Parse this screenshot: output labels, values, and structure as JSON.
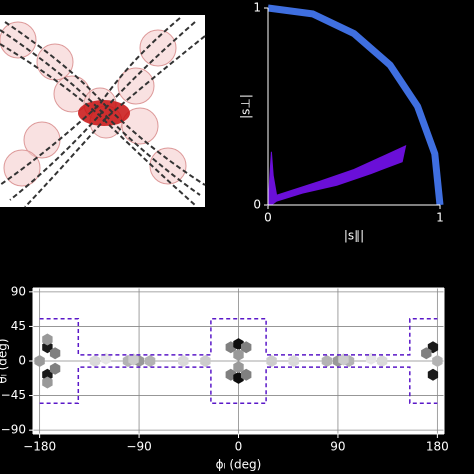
{
  "chart_data": [
    {
      "type": "line",
      "xlabel": "|s∥|",
      "ylabel": "|s⊥|",
      "xlim": [
        0,
        1
      ],
      "ylim": [
        0,
        1
      ],
      "xticks": [
        0,
        1
      ],
      "yticks": [
        0,
        1
      ],
      "series": [
        {
          "color": "#3f6fe0",
          "fill": false,
          "x": [
            0,
            0.26,
            0.5,
            0.71,
            0.87,
            0.97,
            1
          ],
          "y": [
            1,
            0.97,
            0.87,
            0.71,
            0.5,
            0.26,
            0
          ]
        },
        {
          "color": "#6a0fd8",
          "fill": true,
          "x": [
            0,
            0.02,
            0.03,
            0.05,
            0.3,
            0.5,
            0.75,
            0.8,
            0.78,
            0.6,
            0.4,
            0.2,
            0.05,
            0.02,
            0
          ],
          "y": [
            0,
            0.27,
            0.15,
            0.05,
            0.12,
            0.18,
            0.28,
            0.3,
            0.22,
            0.16,
            0.1,
            0.06,
            0.02,
            0,
            0
          ]
        }
      ]
    },
    {
      "type": "hexbin",
      "xlabel": "ϕₗ (deg)",
      "ylabel": "θₗ (deg)",
      "xlim": [
        -186,
        186
      ],
      "ylim": [
        -95,
        95
      ],
      "grid": true,
      "xticks": [
        {
          "value": -180,
          "label": "−180"
        },
        {
          "value": -90,
          "label": "−90"
        },
        0,
        90,
        180
      ],
      "yticks": [
        90,
        45,
        0,
        {
          "value": -45,
          "label": "−45"
        },
        {
          "value": -90,
          "label": "−90"
        }
      ],
      "x": [
        -173,
        -173,
        -166,
        -166,
        -180,
        -173,
        -173,
        -7,
        0,
        7,
        -7,
        0,
        7,
        0,
        0,
        176,
        176,
        170,
        180,
        -90,
        -100,
        -80,
        -95,
        90,
        80,
        100,
        95,
        -130,
        -50,
        50,
        130,
        -30,
        30,
        -120,
        120
      ],
      "y": [
        18,
        -18,
        10,
        -10,
        0,
        28,
        -28,
        18,
        22,
        18,
        -18,
        -22,
        -18,
        8,
        -8,
        18,
        -18,
        10,
        0,
        0,
        0,
        0,
        2,
        0,
        0,
        0,
        2,
        0,
        0,
        0,
        0,
        0,
        0,
        3,
        3
      ],
      "values": [
        0.9,
        0.9,
        0.5,
        0.5,
        0.4,
        0.4,
        0.4,
        0.5,
        0.95,
        0.5,
        0.5,
        0.95,
        0.5,
        0.4,
        0.4,
        0.9,
        0.9,
        0.5,
        0.3,
        0.4,
        0.3,
        0.3,
        0.2,
        0.4,
        0.3,
        0.3,
        0.2,
        0.15,
        0.15,
        0.15,
        0.15,
        0.2,
        0.2,
        0.1,
        0.1
      ],
      "series": [
        {
          "color": "#5a18c8",
          "dashed": true,
          "x": [
            -180,
            -145,
            -145,
            -25,
            -25,
            25,
            25,
            155,
            155,
            180
          ],
          "y": [
            55,
            55,
            8,
            8,
            55,
            55,
            8,
            8,
            55,
            55
          ]
        },
        {
          "color": "#5a18c8",
          "dashed": true,
          "x": [
            -180,
            -145,
            -145,
            -25,
            -25,
            25,
            25,
            155,
            155,
            180
          ],
          "y": [
            -55,
            -55,
            -8,
            -8,
            -55,
            -55,
            -8,
            -8,
            -55,
            -55
          ]
        }
      ]
    }
  ]
}
